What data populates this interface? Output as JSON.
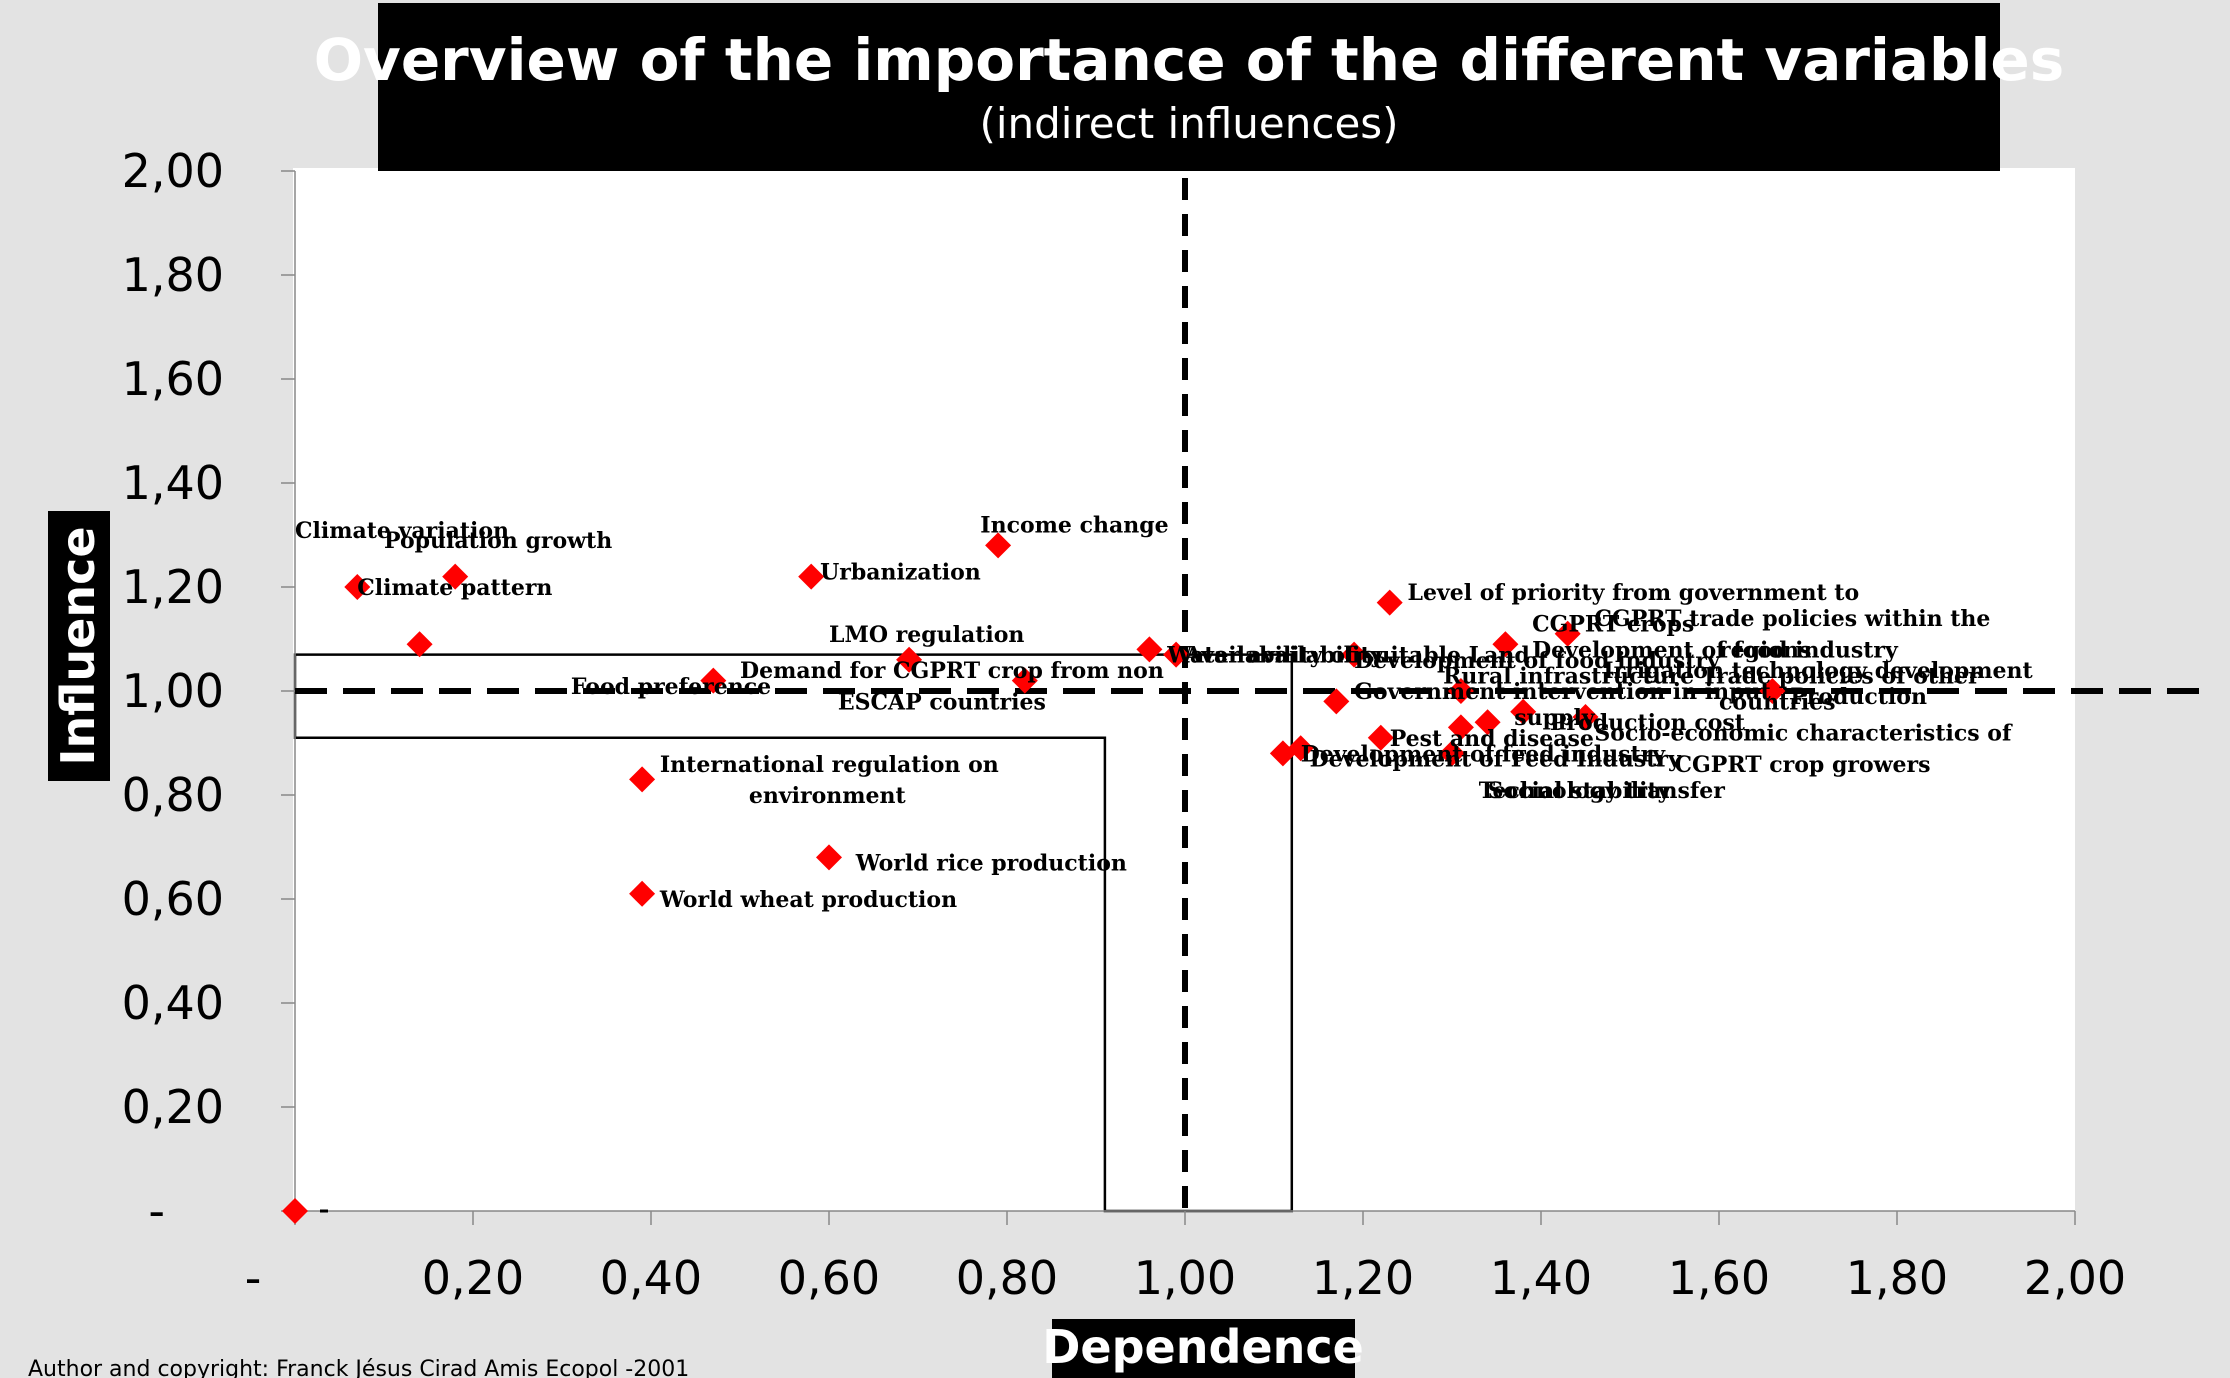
{
  "chart_data": {
    "type": "scatter",
    "title": "Overview of the importance of the different variables",
    "subtitle": "(indirect influences)",
    "xlabel": "Dependence",
    "ylabel": "Influence",
    "xlim": [
      0,
      2
    ],
    "ylim": [
      0,
      2
    ],
    "x_ticks": [
      "-",
      "0,20",
      "0,40",
      "0,60",
      "0,80",
      "1,00",
      "1,20",
      "1,40",
      "1,60",
      "1,80",
      "2,00"
    ],
    "y_ticks": [
      "-",
      "0,20",
      "0,40",
      "0,60",
      "0,80",
      "1,00",
      "1,20",
      "1,40",
      "1,60",
      "1,80",
      "2,00"
    ],
    "grid": false,
    "marker_color": "#ff0000",
    "footer": "Author and copyright: Franck Jésus Cirad Amis Ecopol -2001",
    "threshold_x": 1.0,
    "threshold_y": 1.0,
    "points": [
      {
        "x": 0.0,
        "y": 0.0
      },
      {
        "x": 0.07,
        "y": 1.2
      },
      {
        "x": 0.14,
        "y": 1.09
      },
      {
        "x": 0.18,
        "y": 1.22
      },
      {
        "x": 0.39,
        "y": 0.83
      },
      {
        "x": 0.39,
        "y": 0.61
      },
      {
        "x": 0.47,
        "y": 1.02
      },
      {
        "x": 0.58,
        "y": 1.22
      },
      {
        "x": 0.6,
        "y": 0.68
      },
      {
        "x": 0.69,
        "y": 1.06
      },
      {
        "x": 0.79,
        "y": 1.28
      },
      {
        "x": 0.82,
        "y": 1.02
      },
      {
        "x": 0.96,
        "y": 1.08
      },
      {
        "x": 0.99,
        "y": 1.07
      },
      {
        "x": 1.11,
        "y": 0.88
      },
      {
        "x": 1.13,
        "y": 0.89
      },
      {
        "x": 1.17,
        "y": 0.98
      },
      {
        "x": 1.19,
        "y": 1.07
      },
      {
        "x": 1.22,
        "y": 0.91
      },
      {
        "x": 1.23,
        "y": 1.17
      },
      {
        "x": 1.3,
        "y": 0.88
      },
      {
        "x": 1.31,
        "y": 1.0
      },
      {
        "x": 1.31,
        "y": 0.93
      },
      {
        "x": 1.34,
        "y": 0.94
      },
      {
        "x": 1.36,
        "y": 1.09
      },
      {
        "x": 1.38,
        "y": 0.96
      },
      {
        "x": 1.43,
        "y": 1.11
      },
      {
        "x": 1.45,
        "y": 0.95
      },
      {
        "x": 1.66,
        "y": 1.0
      }
    ],
    "labels": [
      {
        "text": "Climate variation",
        "x": 0.0,
        "y": 1.31
      },
      {
        "text": "Population growth",
        "x": 0.1,
        "y": 1.29
      },
      {
        "text": "Climate pattern",
        "x": 0.07,
        "y": 1.2
      },
      {
        "text": "Urbanization",
        "x": 0.59,
        "y": 1.23
      },
      {
        "text": "Income change",
        "x": 0.77,
        "y": 1.32
      },
      {
        "text": "LMO regulation",
        "x": 0.6,
        "y": 1.11
      },
      {
        "text": "Demand for CGPRT crop from non",
        "x": 0.5,
        "y": 1.04
      },
      {
        "text": "ESCAP countries",
        "x": 0.61,
        "y": 0.98
      },
      {
        "text": "Food preference",
        "x": 0.31,
        "y": 1.01
      },
      {
        "text": "International regulation on",
        "x": 0.41,
        "y": 0.86
      },
      {
        "text": "environment",
        "x": 0.51,
        "y": 0.8
      },
      {
        "text": "World rice production",
        "x": 0.63,
        "y": 0.67
      },
      {
        "text": "World wheat production",
        "x": 0.41,
        "y": 0.6
      },
      {
        "text": "Water availability",
        "x": 0.98,
        "y": 1.07
      },
      {
        "text": "Availability of suitable Land",
        "x": 1.0,
        "y": 1.07
      },
      {
        "text": "Level of priority from government to",
        "x": 1.25,
        "y": 1.19
      },
      {
        "text": "CGPRT crops",
        "x": 1.39,
        "y": 1.13
      },
      {
        "text": "CGPRT trade policies within the",
        "x": 1.46,
        "y": 1.14
      },
      {
        "text": "Development of food industry",
        "x": 1.19,
        "y": 1.06
      },
      {
        "text": "Development of food industry",
        "x": 1.39,
        "y": 1.08
      },
      {
        "text": "regions",
        "x": 1.6,
        "y": 1.08
      },
      {
        "text": "Rural infrastructure",
        "x": 1.29,
        "y": 1.03
      },
      {
        "text": "Irrigation technology development",
        "x": 1.47,
        "y": 1.04
      },
      {
        "text": "Trade policies of other",
        "x": 1.58,
        "y": 1.03
      },
      {
        "text": "countries",
        "x": 1.6,
        "y": 0.98
      },
      {
        "text": "Government intervention in input",
        "x": 1.19,
        "y": 1.0
      },
      {
        "text": "Production",
        "x": 1.68,
        "y": 0.99
      },
      {
        "text": "supply",
        "x": 1.37,
        "y": 0.95
      },
      {
        "text": "Production cost",
        "x": 1.41,
        "y": 0.94
      },
      {
        "text": "Socio-economic characteristics of",
        "x": 1.46,
        "y": 0.92
      },
      {
        "text": "Pest and disease",
        "x": 1.23,
        "y": 0.91
      },
      {
        "text": "Development of feed industry",
        "x": 1.13,
        "y": 0.88
      },
      {
        "text": "Development of Feed Industry",
        "x": 1.14,
        "y": 0.87
      },
      {
        "text": "CGPRT crop growers",
        "x": 1.55,
        "y": 0.86
      },
      {
        "text": "Social stability",
        "x": 1.34,
        "y": 0.81
      },
      {
        "text": "Technology transfer",
        "x": 1.33,
        "y": 0.81
      }
    ]
  }
}
